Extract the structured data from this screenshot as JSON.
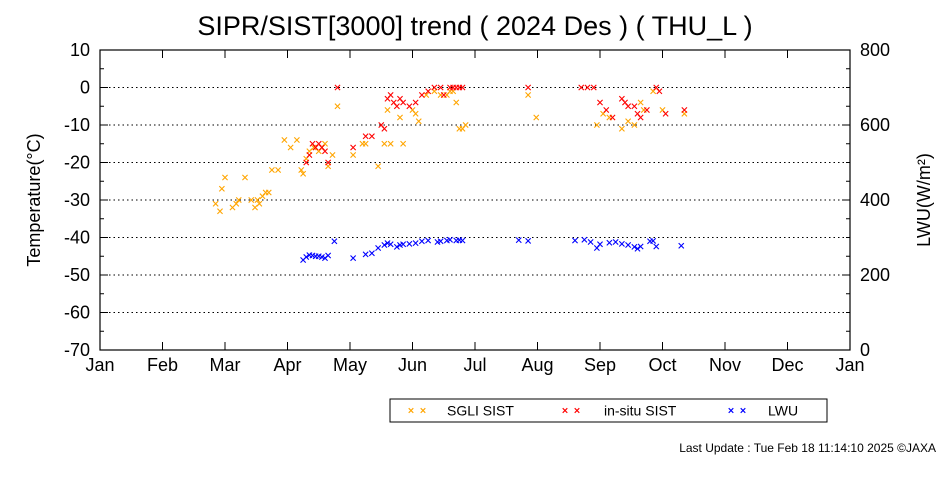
{
  "chart_data": {
    "type": "scatter",
    "title": "SIPR/SIST[3000] trend ( 2024 Des ) ( THU_L )",
    "ylabel": "Temperature(°C)",
    "y2label": "LWU(W/m²)",
    "xlabel": "",
    "x_ticks": [
      "Jan",
      "Feb",
      "Mar",
      "Apr",
      "May",
      "Jun",
      "Jul",
      "Aug",
      "Sep",
      "Oct",
      "Nov",
      "Dec",
      "Jan"
    ],
    "ylim": [
      -70,
      10
    ],
    "y_ticks": [
      10,
      0,
      -10,
      -20,
      -30,
      -40,
      -50,
      -60,
      -70
    ],
    "y2lim": [
      0,
      800
    ],
    "y2_ticks": [
      800,
      600,
      400,
      200,
      0
    ],
    "grid": "horizontal dotted",
    "legend_position": "bottom-right",
    "series": [
      {
        "name": "SGLI SIST",
        "axis": "left",
        "color": "#ffa500",
        "points": [
          [
            2.85,
            -31
          ],
          [
            2.92,
            -33
          ],
          [
            2.95,
            -27
          ],
          [
            3.0,
            -24
          ],
          [
            3.12,
            -32
          ],
          [
            3.18,
            -31
          ],
          [
            3.22,
            -30
          ],
          [
            3.32,
            -24
          ],
          [
            3.42,
            -30
          ],
          [
            3.48,
            -32
          ],
          [
            3.52,
            -30
          ],
          [
            3.55,
            -31
          ],
          [
            3.6,
            -29
          ],
          [
            3.65,
            -28
          ],
          [
            3.7,
            -28
          ],
          [
            3.75,
            -22
          ],
          [
            3.85,
            -22
          ],
          [
            3.95,
            -14
          ],
          [
            4.05,
            -16
          ],
          [
            4.15,
            -14
          ],
          [
            4.22,
            -22
          ],
          [
            4.25,
            -23
          ],
          [
            4.3,
            -19
          ],
          [
            4.35,
            -17
          ],
          [
            4.42,
            -16
          ],
          [
            4.5,
            -17
          ],
          [
            4.55,
            -16
          ],
          [
            4.6,
            -15
          ],
          [
            4.65,
            -21
          ],
          [
            4.72,
            -18
          ],
          [
            4.8,
            -5
          ],
          [
            5.05,
            -18
          ],
          [
            5.2,
            -15
          ],
          [
            5.25,
            -15
          ],
          [
            5.45,
            -21
          ],
          [
            5.55,
            -15
          ],
          [
            5.65,
            -15
          ],
          [
            5.6,
            -6
          ],
          [
            5.8,
            -8
          ],
          [
            5.85,
            -15
          ],
          [
            6.0,
            -6
          ],
          [
            6.05,
            -7
          ],
          [
            6.1,
            -9
          ],
          [
            6.22,
            -2
          ],
          [
            6.35,
            -1
          ],
          [
            6.45,
            -2
          ],
          [
            6.55,
            -2
          ],
          [
            6.6,
            -1
          ],
          [
            6.65,
            -1
          ],
          [
            6.7,
            -4
          ],
          [
            6.75,
            -11
          ],
          [
            6.8,
            -11
          ],
          [
            6.85,
            -10
          ],
          [
            7.85,
            -2
          ],
          [
            7.98,
            -8
          ],
          [
            8.95,
            -10
          ],
          [
            9.05,
            -7
          ],
          [
            9.15,
            -8
          ],
          [
            9.35,
            -11
          ],
          [
            9.45,
            -9
          ],
          [
            9.55,
            -10
          ],
          [
            9.65,
            -4
          ],
          [
            9.7,
            -6
          ],
          [
            9.85,
            -1
          ],
          [
            10.0,
            -6
          ],
          [
            10.35,
            -7
          ]
        ]
      },
      {
        "name": "in-situ SIST",
        "axis": "left",
        "color": "#ff0000",
        "points": [
          [
            4.3,
            -20
          ],
          [
            4.35,
            -18
          ],
          [
            4.4,
            -15
          ],
          [
            4.45,
            -16
          ],
          [
            4.5,
            -15
          ],
          [
            4.55,
            -16
          ],
          [
            4.6,
            -17
          ],
          [
            4.65,
            -20
          ],
          [
            4.8,
            0
          ],
          [
            5.05,
            -16
          ],
          [
            5.25,
            -13
          ],
          [
            5.35,
            -13
          ],
          [
            5.5,
            -10
          ],
          [
            5.55,
            -11
          ],
          [
            5.6,
            -3
          ],
          [
            5.65,
            -2
          ],
          [
            5.7,
            -4
          ],
          [
            5.75,
            -5
          ],
          [
            5.8,
            -3
          ],
          [
            5.85,
            -4
          ],
          [
            5.95,
            -5
          ],
          [
            6.05,
            -4
          ],
          [
            6.15,
            -2
          ],
          [
            6.25,
            -1
          ],
          [
            6.35,
            0
          ],
          [
            6.45,
            0
          ],
          [
            6.5,
            -2
          ],
          [
            6.6,
            0
          ],
          [
            6.65,
            0
          ],
          [
            6.7,
            0
          ],
          [
            6.75,
            0
          ],
          [
            6.8,
            0
          ],
          [
            7.85,
            0
          ],
          [
            8.7,
            0
          ],
          [
            8.8,
            0
          ],
          [
            8.9,
            0
          ],
          [
            9.0,
            -4
          ],
          [
            9.1,
            -6
          ],
          [
            9.2,
            -8
          ],
          [
            9.35,
            -3
          ],
          [
            9.4,
            -4
          ],
          [
            9.45,
            -5
          ],
          [
            9.55,
            -5
          ],
          [
            9.6,
            -7
          ],
          [
            9.65,
            -8
          ],
          [
            9.75,
            -6
          ],
          [
            9.9,
            0
          ],
          [
            9.95,
            -1
          ],
          [
            10.05,
            -7
          ],
          [
            10.35,
            -6
          ]
        ]
      },
      {
        "name": "LWU",
        "axis": "right",
        "color": "#0000ff",
        "points": [
          [
            4.25,
            240
          ],
          [
            4.3,
            248
          ],
          [
            4.35,
            253
          ],
          [
            4.4,
            252
          ],
          [
            4.45,
            250
          ],
          [
            4.5,
            250
          ],
          [
            4.55,
            248
          ],
          [
            4.6,
            245
          ],
          [
            4.65,
            252
          ],
          [
            4.75,
            290
          ],
          [
            5.05,
            245
          ],
          [
            5.25,
            255
          ],
          [
            5.35,
            258
          ],
          [
            5.45,
            272
          ],
          [
            5.55,
            280
          ],
          [
            5.6,
            285
          ],
          [
            5.65,
            282
          ],
          [
            5.75,
            275
          ],
          [
            5.8,
            280
          ],
          [
            5.85,
            282
          ],
          [
            5.95,
            283
          ],
          [
            6.05,
            285
          ],
          [
            6.15,
            290
          ],
          [
            6.25,
            292
          ],
          [
            6.4,
            288
          ],
          [
            6.45,
            290
          ],
          [
            6.55,
            292
          ],
          [
            6.6,
            294
          ],
          [
            6.7,
            292
          ],
          [
            6.75,
            293
          ],
          [
            6.8,
            292
          ],
          [
            7.7,
            293
          ],
          [
            7.85,
            291
          ],
          [
            8.6,
            292
          ],
          [
            8.75,
            294
          ],
          [
            8.85,
            288
          ],
          [
            8.95,
            272
          ],
          [
            9.0,
            282
          ],
          [
            9.15,
            286
          ],
          [
            9.25,
            288
          ],
          [
            9.35,
            283
          ],
          [
            9.45,
            280
          ],
          [
            9.55,
            275
          ],
          [
            9.6,
            270
          ],
          [
            9.65,
            276
          ],
          [
            9.8,
            290
          ],
          [
            9.85,
            291
          ],
          [
            9.9,
            276
          ],
          [
            10.3,
            278
          ]
        ]
      }
    ]
  },
  "footer": {
    "last_update": "Last Update : Tue Feb 18 11:14:10 2025 ©JAXA"
  }
}
